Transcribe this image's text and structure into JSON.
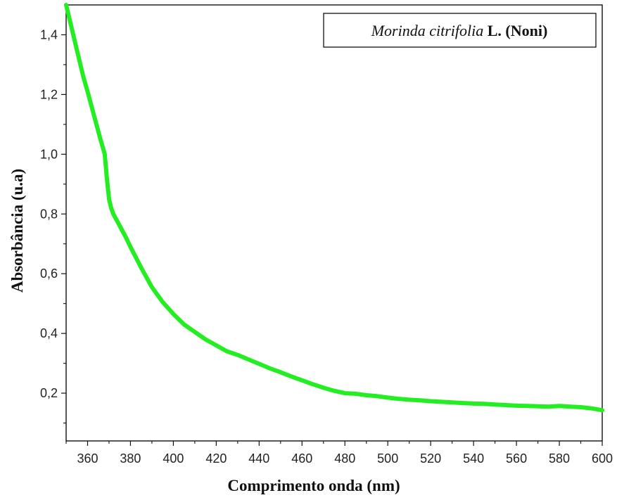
{
  "chart_data": {
    "type": "line",
    "xlabel": "Comprimento onda (nm)",
    "ylabel": "Absorbância (u.a)",
    "xlim": [
      350,
      600
    ],
    "ylim": [
      0.04,
      1.5
    ],
    "x_ticks": [
      360,
      380,
      400,
      420,
      440,
      460,
      480,
      500,
      520,
      540,
      560,
      580,
      600
    ],
    "x_tick_labels": [
      "360",
      "380",
      "400",
      "420",
      "440",
      "460",
      "480",
      "500",
      "520",
      "540",
      "560",
      "580",
      "600"
    ],
    "y_ticks": [
      0.2,
      0.4,
      0.6,
      0.8,
      1.0,
      1.2,
      1.4
    ],
    "y_tick_labels": [
      "0,2",
      "0,4",
      "0,6",
      "0,8",
      "1,0",
      "1,2",
      "1,4"
    ],
    "grid": false,
    "legend": {
      "position": "top-right",
      "species": "Morinda citrifolia",
      "suffix": "L. (Noni)"
    },
    "line_color": "#22ee22",
    "series": [
      {
        "name": "Morinda citrifolia L. (Noni)",
        "x": [
          350,
          352,
          355,
          358,
          360,
          363,
          366,
          368,
          369,
          370,
          371,
          372,
          375,
          378,
          380,
          385,
          390,
          395,
          400,
          405,
          410,
          415,
          420,
          425,
          430,
          435,
          440,
          445,
          450,
          455,
          460,
          465,
          470,
          475,
          480,
          485,
          490,
          495,
          500,
          505,
          510,
          515,
          520,
          525,
          530,
          535,
          540,
          545,
          550,
          555,
          560,
          565,
          570,
          575,
          580,
          585,
          590,
          595,
          600
        ],
        "y": [
          1.5,
          1.44,
          1.35,
          1.26,
          1.21,
          1.13,
          1.05,
          1.0,
          0.92,
          0.85,
          0.82,
          0.8,
          0.76,
          0.72,
          0.69,
          0.62,
          0.555,
          0.505,
          0.465,
          0.43,
          0.405,
          0.38,
          0.36,
          0.34,
          0.328,
          0.313,
          0.298,
          0.283,
          0.27,
          0.256,
          0.243,
          0.23,
          0.218,
          0.208,
          0.2,
          0.198,
          0.193,
          0.19,
          0.185,
          0.181,
          0.178,
          0.176,
          0.173,
          0.171,
          0.169,
          0.167,
          0.165,
          0.164,
          0.162,
          0.16,
          0.158,
          0.157,
          0.156,
          0.155,
          0.157,
          0.155,
          0.153,
          0.149,
          0.143
        ]
      }
    ]
  }
}
